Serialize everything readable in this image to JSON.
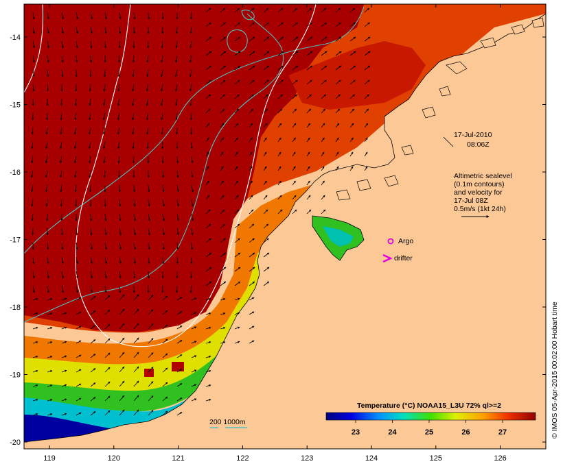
{
  "map": {
    "lon_ticks": [
      "119",
      "120",
      "121",
      "122",
      "123",
      "124",
      "125",
      "126"
    ],
    "lat_ticks": [
      "-14",
      "-15",
      "-16",
      "-17",
      "-18",
      "-19",
      "-20"
    ],
    "timestamp": {
      "date": "17-Jul-2010",
      "time": "08:06Z"
    },
    "altimetry_note": [
      "Altimetric sealevel",
      "(0.1m contours)",
      "and velocity for",
      "17-Jul 08Z",
      "0.5m/s (1kt 24h)"
    ],
    "legend": {
      "argo": "Argo",
      "drifter": "drifter",
      "argo_color": "#e000e0",
      "drifter_color": "#e000e0"
    },
    "depth_scale": "200  1000m",
    "colorbar": {
      "title": "Temperature (°C) NOAA15_L3U 72% ql>=2",
      "tick_labels": [
        "23",
        "24",
        "25",
        "26",
        "27"
      ]
    },
    "credit": "© IMOS 05-Apr-2015 00:02:00 Hobart time",
    "colors": {
      "land": "#fcc896",
      "warm": "#a80000",
      "iso200": "#50c0c0",
      "iso1000": "#ffffff"
    }
  }
}
